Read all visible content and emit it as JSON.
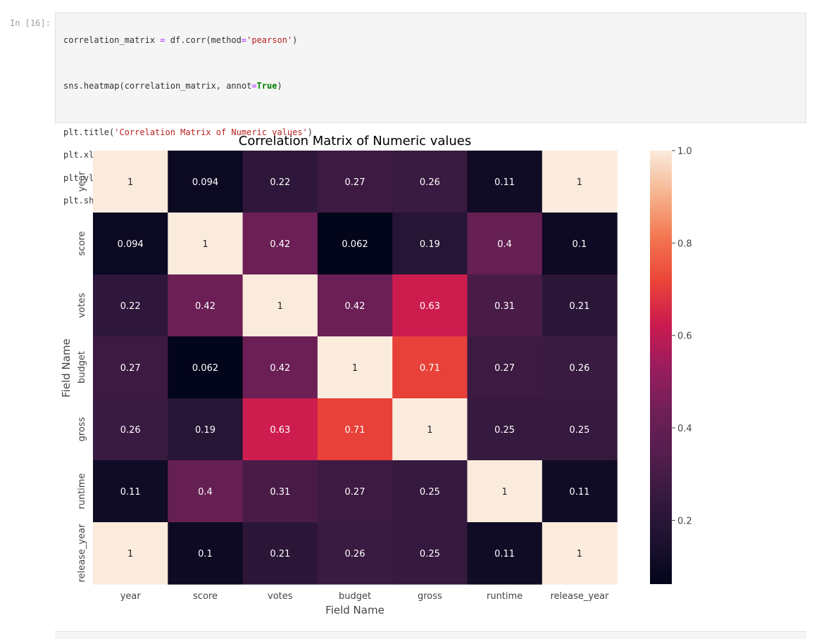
{
  "cell": {
    "prompt": "In [16]:",
    "code_lines": [
      "correlation_matrix = df.corr(method='pearson')",
      "",
      "sns.heatmap(correlation_matrix, annot=True)",
      "",
      "plt.title('Correlation Matrix of Numeric values')",
      "plt.xlabel('Field Name')",
      "plt.ylabel('Field Name')",
      "plt.show()"
    ]
  },
  "chart_data": {
    "type": "heatmap",
    "title": "Correlation Matrix of Numeric values",
    "xlabel": "Field Name",
    "ylabel": "Field Name",
    "x_categories": [
      "year",
      "score",
      "votes",
      "budget",
      "gross",
      "runtime",
      "release_year"
    ],
    "y_categories": [
      "year",
      "score",
      "votes",
      "budget",
      "gross",
      "runtime",
      "release_year"
    ],
    "values": [
      [
        1,
        0.094,
        0.22,
        0.27,
        0.26,
        0.11,
        1
      ],
      [
        0.094,
        1,
        0.42,
        0.062,
        0.19,
        0.4,
        0.1
      ],
      [
        0.22,
        0.42,
        1,
        0.42,
        0.63,
        0.31,
        0.21
      ],
      [
        0.27,
        0.062,
        0.42,
        1,
        0.71,
        0.27,
        0.26
      ],
      [
        0.26,
        0.19,
        0.63,
        0.71,
        1,
        0.25,
        0.25
      ],
      [
        0.11,
        0.4,
        0.31,
        0.27,
        0.25,
        1,
        0.11
      ],
      [
        1,
        0.1,
        0.21,
        0.26,
        0.25,
        0.11,
        1
      ]
    ],
    "value_labels": [
      [
        "1",
        "0.094",
        "0.22",
        "0.27",
        "0.26",
        "0.11",
        "1"
      ],
      [
        "0.094",
        "1",
        "0.42",
        "0.062",
        "0.19",
        "0.4",
        "0.1"
      ],
      [
        "0.22",
        "0.42",
        "1",
        "0.42",
        "0.63",
        "0.31",
        "0.21"
      ],
      [
        "0.27",
        "0.062",
        "0.42",
        "1",
        "0.71",
        "0.27",
        "0.26"
      ],
      [
        "0.26",
        "0.19",
        "0.63",
        "0.71",
        "1",
        "0.25",
        "0.25"
      ],
      [
        "0.11",
        "0.4",
        "0.31",
        "0.27",
        "0.25",
        "1",
        "0.11"
      ],
      [
        "1",
        "0.1",
        "0.21",
        "0.26",
        "0.25",
        "0.11",
        "1"
      ]
    ],
    "colormap": "rocket",
    "colorbar": {
      "range": [
        0.062,
        1.0
      ],
      "ticks": [
        0.2,
        0.4,
        0.6,
        0.8,
        1.0
      ],
      "tick_labels": [
        "0.2",
        "0.4",
        "0.6",
        "0.8",
        "1.0"
      ]
    },
    "grid": false
  }
}
